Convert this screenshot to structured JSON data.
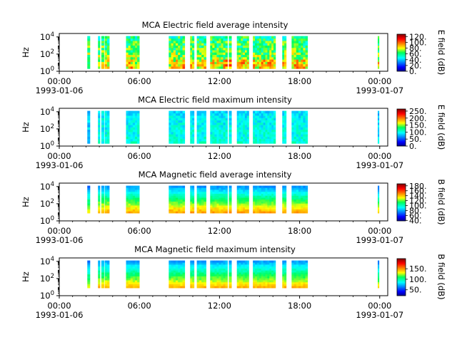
{
  "chart_data": [
    {
      "type": "heatmap",
      "title": "MCA  Electric field average intensity",
      "ylabel": "Hz",
      "yticks": [
        "10",
        "10",
        "10"
      ],
      "yexp": [
        "0",
        "2",
        "4"
      ],
      "ylim_exp": [
        0,
        4.4
      ],
      "xticks": [
        "00:00",
        "06:00",
        "12:00",
        "18:00",
        "00:00"
      ],
      "xticks_hours": [
        0,
        6,
        12,
        18,
        24
      ],
      "xdates": [
        "1993-01-06",
        "1993-01-07"
      ],
      "colorbar_label": "E field (dB)",
      "colorbar_ticks": [
        "0.",
        "20.",
        "40.",
        "60.",
        "80.",
        "100.",
        "120."
      ],
      "colorbar_range": [
        0,
        128
      ],
      "data_intervals_hours": [
        [
          2.1,
          2.3
        ],
        [
          2.9,
          3.05
        ],
        [
          3.15,
          3.35
        ],
        [
          3.4,
          3.75
        ],
        [
          5.0,
          6.0
        ],
        [
          8.2,
          9.4
        ],
        [
          9.8,
          10.1
        ],
        [
          10.3,
          11.0
        ],
        [
          11.3,
          12.6
        ],
        [
          12.7,
          12.9
        ],
        [
          13.3,
          14.2
        ],
        [
          14.5,
          16.2
        ],
        [
          16.7,
          17.0
        ],
        [
          17.4,
          18.6
        ],
        [
          23.85,
          23.95
        ]
      ]
    },
    {
      "type": "heatmap",
      "title": "MCA  Electric field maximum intensity",
      "ylabel": "Hz",
      "yticks": [
        "10",
        "10",
        "10"
      ],
      "yexp": [
        "0",
        "2",
        "4"
      ],
      "ylim_exp": [
        0,
        4.4
      ],
      "xticks": [
        "00:00",
        "06:00",
        "12:00",
        "18:00",
        "00:00"
      ],
      "xticks_hours": [
        0,
        6,
        12,
        18,
        24
      ],
      "xdates": [
        "1993-01-06",
        "1993-01-07"
      ],
      "colorbar_label": "E field (dB)",
      "colorbar_ticks": [
        "0.",
        "50.",
        "100.",
        "150.",
        "200.",
        "250."
      ],
      "colorbar_range": [
        0,
        265
      ],
      "data_intervals_hours": [
        [
          2.1,
          2.3
        ],
        [
          2.9,
          3.05
        ],
        [
          3.15,
          3.35
        ],
        [
          3.4,
          3.75
        ],
        [
          5.0,
          6.0
        ],
        [
          8.2,
          9.4
        ],
        [
          9.8,
          10.1
        ],
        [
          10.3,
          11.0
        ],
        [
          11.3,
          12.6
        ],
        [
          12.7,
          12.9
        ],
        [
          13.3,
          14.2
        ],
        [
          14.5,
          16.2
        ],
        [
          16.7,
          17.0
        ],
        [
          17.4,
          18.6
        ],
        [
          23.85,
          23.95
        ]
      ]
    },
    {
      "type": "heatmap",
      "title": "MCA  Magnetic field average intensity",
      "ylabel": "Hz",
      "yticks": [
        "10",
        "10",
        "10"
      ],
      "yexp": [
        "0",
        "2",
        "4"
      ],
      "ylim_exp": [
        0,
        4.4
      ],
      "xticks": [
        "00:00",
        "06:00",
        "12:00",
        "18:00",
        "00:00"
      ],
      "xticks_hours": [
        0,
        6,
        12,
        18,
        24
      ],
      "xdates": [
        "1993-01-06",
        "1993-01-07"
      ],
      "colorbar_label": "B field (dB)",
      "colorbar_ticks": [
        "40.",
        "60.",
        "80.",
        "100.",
        "120.",
        "140.",
        "160.",
        "180."
      ],
      "colorbar_range": [
        38,
        188
      ],
      "data_intervals_hours": [
        [
          2.1,
          2.3
        ],
        [
          2.9,
          3.05
        ],
        [
          3.15,
          3.35
        ],
        [
          3.4,
          3.75
        ],
        [
          5.0,
          6.0
        ],
        [
          8.2,
          9.4
        ],
        [
          9.8,
          10.1
        ],
        [
          10.3,
          11.0
        ],
        [
          11.3,
          12.6
        ],
        [
          12.7,
          12.9
        ],
        [
          13.3,
          14.2
        ],
        [
          14.5,
          16.2
        ],
        [
          16.7,
          17.0
        ],
        [
          17.4,
          18.6
        ],
        [
          23.85,
          23.95
        ]
      ]
    },
    {
      "type": "heatmap",
      "title": "MCA  Magnetic field maximum intensity",
      "ylabel": "Hz",
      "yticks": [
        "10",
        "10",
        "10"
      ],
      "yexp": [
        "0",
        "2",
        "4"
      ],
      "ylim_exp": [
        0,
        4.4
      ],
      "xticks": [
        "00:00",
        "06:00",
        "12:00",
        "18:00",
        "00:00"
      ],
      "xticks_hours": [
        0,
        6,
        12,
        18,
        24
      ],
      "xdates": [
        "1993-01-06",
        "1993-01-07"
      ],
      "colorbar_label": "B field (dB)",
      "colorbar_ticks": [
        "50.",
        "100.",
        "150."
      ],
      "colorbar_range": [
        22,
        198
      ],
      "data_intervals_hours": [
        [
          2.1,
          2.3
        ],
        [
          2.9,
          3.05
        ],
        [
          3.15,
          3.35
        ],
        [
          3.4,
          3.75
        ],
        [
          5.0,
          6.0
        ],
        [
          8.2,
          9.4
        ],
        [
          9.8,
          10.1
        ],
        [
          10.3,
          11.0
        ],
        [
          11.3,
          12.6
        ],
        [
          12.7,
          12.9
        ],
        [
          13.3,
          14.2
        ],
        [
          14.5,
          16.2
        ],
        [
          16.7,
          17.0
        ],
        [
          17.4,
          18.6
        ],
        [
          23.85,
          23.95
        ]
      ]
    }
  ]
}
